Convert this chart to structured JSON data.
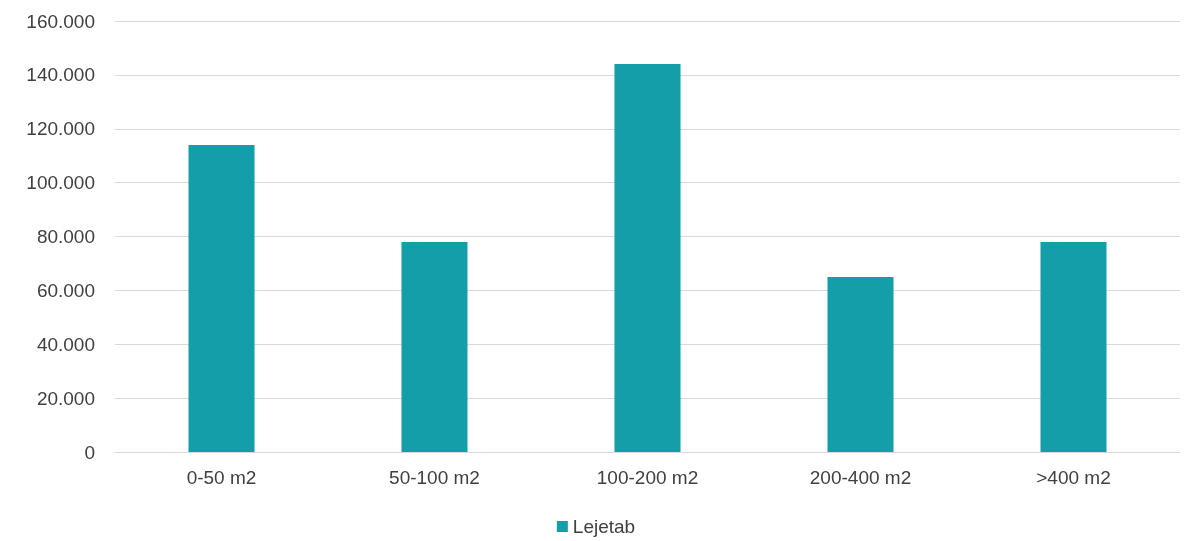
{
  "chart_data": {
    "type": "bar",
    "categories": [
      "0-50 m2",
      "50-100 m2",
      "100-200 m2",
      "200-400 m2",
      ">400 m2"
    ],
    "series": [
      {
        "name": "Lejetab",
        "color": "#139ea9",
        "values": [
          114000,
          78000,
          144000,
          65000,
          78000
        ]
      }
    ],
    "ylim": [
      0,
      160000
    ],
    "yticks": [
      {
        "value": 0,
        "label": "0"
      },
      {
        "value": 20000,
        "label": "20.000"
      },
      {
        "value": 40000,
        "label": "40.000"
      },
      {
        "value": 60000,
        "label": "60.000"
      },
      {
        "value": 80000,
        "label": "80.000"
      },
      {
        "value": 100000,
        "label": "100.000"
      },
      {
        "value": 120000,
        "label": "120.000"
      },
      {
        "value": 140000,
        "label": "140.000"
      },
      {
        "value": 160000,
        "label": "160.000"
      }
    ],
    "grid": "y",
    "legend": "bottom"
  }
}
